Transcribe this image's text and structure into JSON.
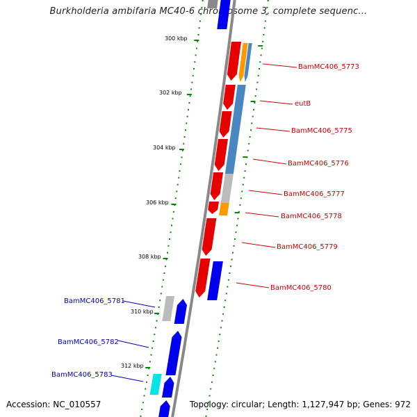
{
  "title": "Burkholderia ambifaria MC40-6 chromosome 3, complete sequenc...",
  "accession_line": "Accession: NC_010557",
  "stats_line": "Topology: circular; Length: 1,127,947 bp; Genes: 972",
  "colors": {
    "forward": "#e60000",
    "reverse": "#0000ee",
    "orange": "#ff9900",
    "steelblue": "#4a86c0",
    "gray": "#bbbbbb",
    "cyan": "#00e5e5",
    "backbone": "#888888",
    "tick": "#008800",
    "label_red": "#cc0000",
    "label_blue": "#0000bb"
  },
  "kbp_labels": [
    "300 kbp",
    "302 kbp",
    "304 kbp",
    "306 kbp",
    "308 kbp",
    "310 kbp",
    "312 kbp"
  ],
  "gene_labels_right": [
    {
      "text": "BamMC406_5773"
    },
    {
      "text": "eutB"
    },
    {
      "text": "BamMC406_5775"
    },
    {
      "text": "BamMC406_5776"
    },
    {
      "text": "BamMC406_5777"
    },
    {
      "text": "BamMC406_5778"
    },
    {
      "text": "BamMC406_5779"
    },
    {
      "text": "BamMC406_5780"
    }
  ],
  "gene_labels_left": [
    {
      "text": "BamMC406_5781"
    },
    {
      "text": "BamMC406_5782"
    },
    {
      "text": "BamMC406_5783"
    }
  ]
}
